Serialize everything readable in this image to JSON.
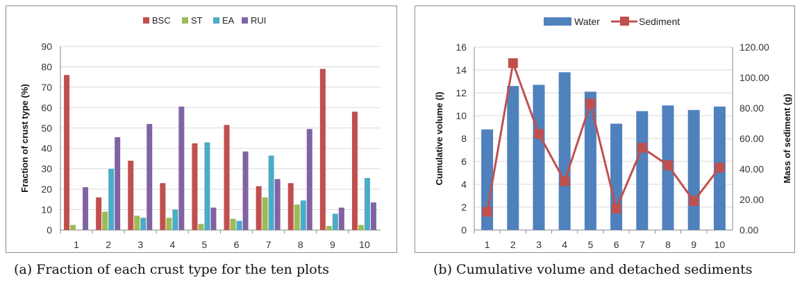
{
  "captions": {
    "a": "(a) Fraction of each crust type for the ten plots",
    "b": "(b) Cumulative volume and detached sediments"
  },
  "chart_data": [
    {
      "type": "bar",
      "categories": [
        "1",
        "2",
        "3",
        "4",
        "5",
        "6",
        "7",
        "8",
        "9",
        "10"
      ],
      "ylabel": "Fraction of crust type (%)",
      "xlabel": "",
      "ylim": [
        0,
        90
      ],
      "yticks": [
        "0",
        "10",
        "20",
        "30",
        "40",
        "50",
        "60",
        "70",
        "80",
        "90"
      ],
      "grid": true,
      "legend_position": "top",
      "series": [
        {
          "name": "BSC",
          "color": "#c0504d",
          "values": [
            76,
            16,
            34,
            23,
            42.5,
            51.5,
            21.5,
            23,
            79,
            58
          ]
        },
        {
          "name": "ST",
          "color": "#9bbb59",
          "values": [
            2.5,
            9,
            7,
            6,
            3,
            5.5,
            16,
            12.5,
            2,
            2.5
          ]
        },
        {
          "name": "EA",
          "color": "#4bacc6",
          "values": [
            0,
            30,
            6,
            10,
            43,
            4.5,
            36.5,
            14.5,
            8,
            25.5
          ]
        },
        {
          "name": "RUI",
          "color": "#8064a2",
          "values": [
            21,
            45.5,
            52,
            60.5,
            11,
            38.5,
            25,
            49.5,
            11,
            13.5
          ]
        }
      ]
    },
    {
      "type": "bar",
      "categories": [
        "1",
        "2",
        "3",
        "4",
        "5",
        "6",
        "7",
        "8",
        "9",
        "10"
      ],
      "ylabel": "Cumulative volume (l)",
      "y2label": "Mass of sediment (g)",
      "ylim": [
        0,
        16
      ],
      "y2lim": [
        0,
        120
      ],
      "yticks": [
        "0",
        "2",
        "4",
        "6",
        "8",
        "10",
        "12",
        "14",
        "16"
      ],
      "y2ticks": [
        "0.00",
        "20.00",
        "40.00",
        "60.00",
        "80.00",
        "100.00",
        "120.00"
      ],
      "grid": true,
      "legend_position": "top",
      "series": [
        {
          "name": "Water",
          "kind": "bar",
          "axis": "left",
          "color": "#4f81bd",
          "values": [
            8.8,
            12.6,
            12.7,
            13.8,
            12.1,
            9.3,
            10.4,
            10.9,
            10.5,
            10.8
          ]
        },
        {
          "name": "Sediment",
          "kind": "line",
          "axis": "right",
          "color": "#c0504d",
          "values": [
            12,
            109.5,
            63,
            32,
            83,
            14,
            54,
            42.5,
            19,
            41
          ]
        }
      ]
    }
  ]
}
